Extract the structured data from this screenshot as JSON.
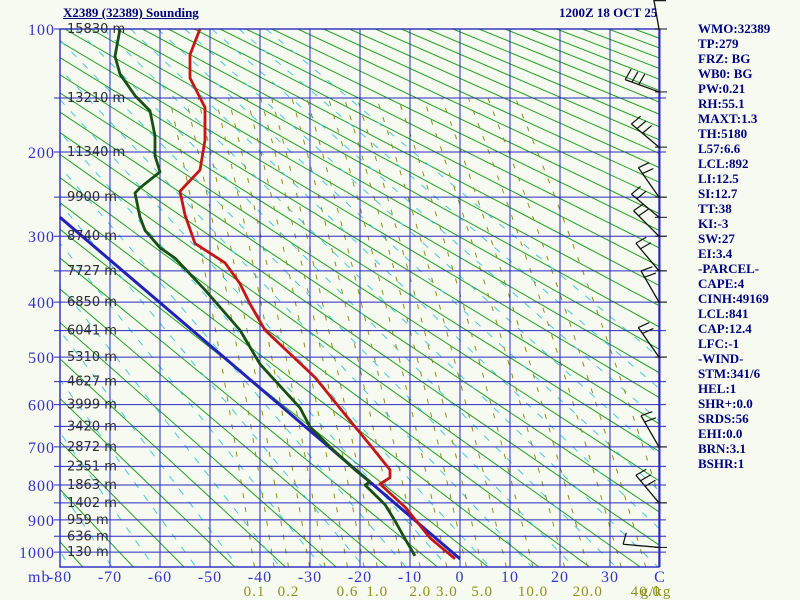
{
  "header": {
    "title": "X2389 (32389) Sounding",
    "datetime": "1200Z 18 OCT 25"
  },
  "stats_panel": {
    "lines": [
      "WMO:32389",
      "TP:279",
      "FRZ: BG",
      "WB0: BG",
      "PW:0.21",
      "RH:55.1",
      "MAXT:1.3",
      "TH:5180",
      "L57:6.6",
      "LCL:892",
      "LI:12.5",
      "SI:12.7",
      "TT:38",
      "KI:-3",
      "SW:27",
      "EI:3.4",
      "-PARCEL-",
      "CAPE:4",
      "CINH:49169",
      "LCL:841",
      "CAP:12.4",
      "LFC:-1",
      "-WIND-",
      "STM:341/6",
      "HEL:1",
      "SHR+:0.0",
      "SRDS:56",
      "EHI:0.0",
      "BRN:3.1",
      "BSHR:1"
    ]
  },
  "chart_data": {
    "type": "stuve_sounding",
    "title": "X2389 (32389) Sounding",
    "valid_time": "1200Z 18 OCT 25",
    "pressure_unit": "mb",
    "temp_unit": "C",
    "mixing_unit": "g/kg",
    "pressure_ticks_mb": [
      100,
      200,
      300,
      400,
      500,
      600,
      700,
      800,
      900,
      1000
    ],
    "temp_ticks_c": [
      -80,
      -70,
      -60,
      -50,
      -40,
      -30,
      -20,
      -10,
      0,
      10,
      20,
      30
    ],
    "temp_range_c": [
      -80,
      40
    ],
    "pressure_range_mb": [
      100,
      1050
    ],
    "levels_height_labels": [
      [
        100,
        "15830 m"
      ],
      [
        150,
        "13210 m"
      ],
      [
        200,
        "11340 m"
      ],
      [
        250,
        "9900 m"
      ],
      [
        300,
        "8740 m"
      ],
      [
        350,
        "7727 m"
      ],
      [
        400,
        "6850 m"
      ],
      [
        450,
        "6041 m"
      ],
      [
        500,
        "5310 m"
      ],
      [
        550,
        "4627 m"
      ],
      [
        600,
        "3999 m"
      ],
      [
        650,
        "3420 m"
      ],
      [
        700,
        "2872 m"
      ],
      [
        750,
        "2351 m"
      ],
      [
        800,
        "1863 m"
      ],
      [
        850,
        "1402 m"
      ],
      [
        900,
        "959 m"
      ],
      [
        950,
        "636 m"
      ],
      [
        1000,
        "130 m"
      ]
    ],
    "mixing_ratio_labeled": [
      "0.1",
      "0.2",
      "0.6",
      "1.0",
      "2.0",
      "3.0",
      "5.0",
      "10.0",
      "20.0",
      "40.0"
    ],
    "mixing_ratio_all_lines": [
      0.1,
      0.15,
      0.2,
      0.3,
      0.4,
      0.6,
      0.8,
      1.0,
      1.5,
      2.0,
      3.0,
      4.0,
      5.0,
      7.0,
      10.0,
      15.0,
      20.0,
      30.0,
      40.0,
      60.0
    ],
    "temperature_profile_p_t": [
      [
        100,
        -52
      ],
      [
        117,
        -54
      ],
      [
        134,
        -54
      ],
      [
        158,
        -51
      ],
      [
        188,
        -51
      ],
      [
        219,
        -52
      ],
      [
        243,
        -56
      ],
      [
        272,
        -55
      ],
      [
        310,
        -53
      ],
      [
        338,
        -47
      ],
      [
        370,
        -44
      ],
      [
        403,
        -42
      ],
      [
        449,
        -39
      ],
      [
        541,
        -29
      ],
      [
        651,
        -21
      ],
      [
        695,
        -18
      ],
      [
        759,
        -14
      ],
      [
        780,
        -14
      ],
      [
        797,
        -16
      ],
      [
        862,
        -11
      ],
      [
        955,
        -6
      ],
      [
        1022,
        -1
      ]
    ],
    "dewpoint_profile_p_t": [
      [
        100,
        -68
      ],
      [
        118,
        -69
      ],
      [
        131,
        -68
      ],
      [
        148,
        -65
      ],
      [
        161,
        -62
      ],
      [
        184,
        -61
      ],
      [
        204,
        -61
      ],
      [
        221,
        -60
      ],
      [
        239,
        -64
      ],
      [
        245,
        -65
      ],
      [
        275,
        -64
      ],
      [
        292,
        -63
      ],
      [
        316,
        -60
      ],
      [
        331,
        -57
      ],
      [
        380,
        -51
      ],
      [
        449,
        -44
      ],
      [
        514,
        -40
      ],
      [
        607,
        -32
      ],
      [
        651,
        -30
      ],
      [
        700,
        -26
      ],
      [
        759,
        -21
      ],
      [
        791,
        -18
      ],
      [
        800,
        -19
      ],
      [
        855,
        -15
      ],
      [
        903,
        -13
      ],
      [
        958,
        -11
      ],
      [
        1012,
        -9
      ]
    ],
    "parcel_line_p_t": [
      [
        275,
        -80
      ],
      [
        1022,
        0
      ]
    ],
    "wind_barbs": [
      {
        "p": 100,
        "a": -10,
        "f": 2
      },
      {
        "p": 145,
        "a": -70,
        "f": 3
      },
      {
        "p": 195,
        "a": -50,
        "f": 3
      },
      {
        "p": 250,
        "a": -35,
        "f": 2
      },
      {
        "p": 275,
        "a": -50,
        "f": 2
      },
      {
        "p": 300,
        "a": -45,
        "f": 2
      },
      {
        "p": 350,
        "a": -40,
        "f": 2
      },
      {
        "p": 400,
        "a": -30,
        "f": 2
      },
      {
        "p": 500,
        "a": -35,
        "f": 2
      },
      {
        "p": 700,
        "a": -30,
        "f": 2
      },
      {
        "p": 850,
        "a": -40,
        "f": 3
      },
      {
        "p": 985,
        "a": -85,
        "f": 1
      }
    ]
  },
  "colors": {
    "background": "#f6faf0",
    "grid": "#2a2ac0",
    "axis_label": "#3434cc",
    "navy_text": "#00007d",
    "temperature": "#c41616",
    "dewpoint": "#174f14",
    "parcel": "#2222bb",
    "dry_adiabat": "#22a022",
    "moist_adiabat": "#45c8dd",
    "mixing_ratio": "#8f8f1a",
    "height_label": "#2e2e2e",
    "barb": "#101010"
  }
}
